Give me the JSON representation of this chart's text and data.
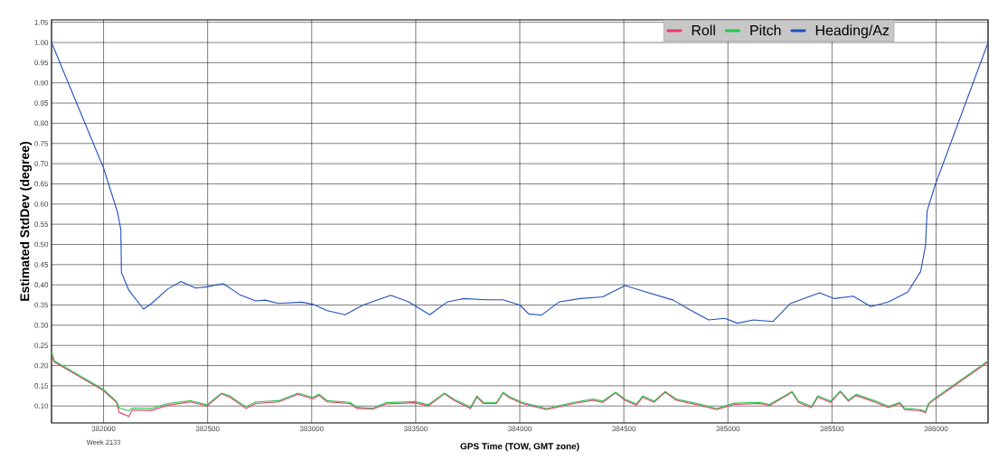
{
  "chart_data": {
    "type": "line",
    "xlabel": "GPS Time (TOW, GMT zone)",
    "ylabel": "Estimated StdDev (degree)",
    "annotations": [
      "Week 2133"
    ],
    "xlim": [
      381750,
      386250
    ],
    "ylim": [
      0.058,
      1.056
    ],
    "xticks": [
      382000,
      382500,
      383000,
      383500,
      384000,
      384500,
      385000,
      385500,
      386000
    ],
    "yticks": [
      {
        "value": 0.1,
        "label": "0.10"
      },
      0.15,
      {
        "value": 0.2,
        "label": "0.20"
      },
      0.25,
      {
        "value": 0.3,
        "label": "0.30"
      },
      0.35,
      {
        "value": 0.4,
        "label": "0.40"
      },
      0.45,
      {
        "value": 0.5,
        "label": "0.50"
      },
      0.55,
      {
        "value": 0.6,
        "label": "0.60"
      },
      0.65,
      {
        "value": 0.7,
        "label": "0.70"
      },
      0.75,
      {
        "value": 0.8,
        "label": "0.80"
      },
      0.85,
      {
        "value": 0.9,
        "label": "0.90"
      },
      0.95,
      {
        "value": 1.0,
        "label": "1.00"
      },
      1.05
    ],
    "grid": true,
    "legend": "top right",
    "marker": "none",
    "line_style": "solid",
    "series": [
      {
        "name": "Roll",
        "color": "#e8386a",
        "x": [
          381750,
          381763,
          382000,
          382063,
          382075,
          382122,
          382138,
          382231,
          382309,
          382419,
          382497,
          382567,
          382606,
          382684,
          382731,
          382841,
          382934,
          383005,
          383036,
          383075,
          383184,
          383216,
          383294,
          383356,
          383497,
          383559,
          383638,
          383684,
          383763,
          383794,
          383825,
          383888,
          383920,
          383951,
          384012,
          384128,
          384259,
          384352,
          384398,
          384460,
          384506,
          384560,
          384591,
          384645,
          384699,
          384753,
          384861,
          384946,
          385031,
          385154,
          385200,
          385308,
          385339,
          385401,
          385432,
          385494,
          385540,
          385579,
          385617,
          385710,
          385771,
          385825,
          385849,
          385926,
          385949,
          385964,
          385998,
          386250
        ],
        "values": [
          0.226,
          0.209,
          0.138,
          0.108,
          0.084,
          0.074,
          0.09,
          0.089,
          0.102,
          0.11,
          0.1,
          0.13,
          0.122,
          0.094,
          0.106,
          0.11,
          0.129,
          0.118,
          0.126,
          0.11,
          0.106,
          0.094,
          0.092,
          0.105,
          0.108,
          0.1,
          0.13,
          0.114,
          0.094,
          0.122,
          0.106,
          0.106,
          0.132,
          0.12,
          0.106,
          0.091,
          0.106,
          0.114,
          0.109,
          0.132,
          0.114,
          0.102,
          0.122,
          0.109,
          0.134,
          0.114,
          0.102,
          0.091,
          0.104,
          0.106,
          0.101,
          0.134,
          0.109,
          0.096,
          0.122,
          0.109,
          0.135,
          0.112,
          0.126,
          0.109,
          0.096,
          0.106,
          0.091,
          0.088,
          0.083,
          0.104,
          0.118,
          0.209
        ]
      },
      {
        "name": "Pitch",
        "color": "#22c84a",
        "x": [
          381750,
          381763,
          382000,
          382063,
          382075,
          382122,
          382138,
          382231,
          382309,
          382419,
          382497,
          382567,
          382606,
          382684,
          382731,
          382841,
          382934,
          383005,
          383036,
          383075,
          383184,
          383216,
          383294,
          383356,
          383497,
          383559,
          383638,
          383684,
          383763,
          383794,
          383825,
          383888,
          383920,
          383951,
          384012,
          384128,
          384259,
          384352,
          384398,
          384460,
          384506,
          384560,
          384591,
          384645,
          384699,
          384753,
          384861,
          384946,
          385031,
          385154,
          385200,
          385308,
          385339,
          385401,
          385432,
          385494,
          385540,
          385579,
          385617,
          385710,
          385771,
          385825,
          385849,
          385926,
          385949,
          385964,
          385998,
          386250
        ],
        "values": [
          0.235,
          0.212,
          0.141,
          0.111,
          0.095,
          0.088,
          0.095,
          0.094,
          0.106,
          0.113,
          0.103,
          0.132,
          0.125,
          0.098,
          0.11,
          0.113,
          0.132,
          0.121,
          0.129,
          0.113,
          0.109,
          0.097,
          0.095,
          0.108,
          0.111,
          0.103,
          0.132,
          0.117,
          0.097,
          0.125,
          0.109,
          0.109,
          0.134,
          0.123,
          0.109,
          0.094,
          0.109,
          0.117,
          0.112,
          0.134,
          0.117,
          0.105,
          0.125,
          0.112,
          0.136,
          0.117,
          0.105,
          0.094,
          0.107,
          0.109,
          0.104,
          0.136,
          0.112,
          0.099,
          0.125,
          0.112,
          0.137,
          0.115,
          0.129,
          0.112,
          0.099,
          0.109,
          0.094,
          0.091,
          0.086,
          0.107,
          0.121,
          0.212
        ]
      },
      {
        "name": "Heading/Az",
        "color": "#1f4fbf",
        "x": [
          381750,
          382000,
          382067,
          382083,
          382086,
          382122,
          382192,
          382231,
          382309,
          382372,
          382442,
          382497,
          382575,
          382653,
          382731,
          382778,
          382841,
          382950,
          383005,
          383075,
          383161,
          383247,
          383380,
          383466,
          383567,
          383653,
          383731,
          383841,
          383919,
          384000,
          384043,
          384105,
          384190,
          384290,
          384398,
          384506,
          384583,
          384738,
          384815,
          384907,
          384985,
          385046,
          385123,
          385216,
          385301,
          385440,
          385509,
          385602,
          385687,
          385772,
          385864,
          385926,
          385949,
          385957,
          385995,
          386250
        ],
        "values": [
          1.0,
          0.689,
          0.58,
          0.537,
          0.43,
          0.386,
          0.34,
          0.354,
          0.39,
          0.408,
          0.392,
          0.395,
          0.403,
          0.376,
          0.36,
          0.362,
          0.354,
          0.357,
          0.352,
          0.336,
          0.326,
          0.35,
          0.374,
          0.358,
          0.326,
          0.358,
          0.366,
          0.363,
          0.363,
          0.35,
          0.328,
          0.325,
          0.358,
          0.366,
          0.37,
          0.398,
          0.386,
          0.362,
          0.339,
          0.313,
          0.317,
          0.305,
          0.313,
          0.309,
          0.354,
          0.38,
          0.366,
          0.372,
          0.346,
          0.358,
          0.382,
          0.433,
          0.496,
          0.583,
          0.646,
          1.0
        ]
      }
    ]
  }
}
